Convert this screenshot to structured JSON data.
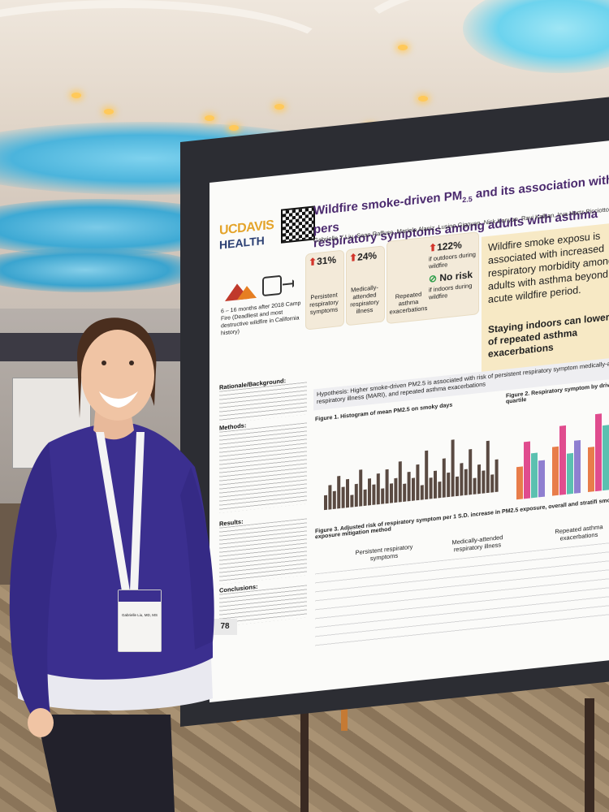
{
  "poster": {
    "title_line1": "Wildfire smoke-driven PM",
    "title_sub": "2.5",
    "title_line1b": " and its association with pers",
    "title_line2": "respiratory symptoms among adults with asthma",
    "authors": "Gabrielle Y Liu, Sean Raffuse, Mariela Alaniz, Lusine Gigoyan, Nick Kenyon, Ravi Kalhan, Irva Hertz-Picciotto",
    "logo_top": "UCDAVIS",
    "logo_bottom": "HEALTH",
    "stats": [
      {
        "value": "31%",
        "label": "Persistent respiratory symptoms"
      },
      {
        "value": "24%",
        "label": "Medically-attended respiratory illness"
      },
      {
        "value": "122%",
        "label": "Repeated asthma exacerbations",
        "note": "if outdoors during wildfire"
      },
      {
        "value": "No risk",
        "note": "if indoors during wildfire"
      }
    ],
    "timeline": "6 – 16 months after 2018 Camp Fire (Deadliest and most destructive wildfire in California history)",
    "callout_main": "Wildfire smoke exposu is associated with increased respiratory morbidity among adults with asthma beyond the acute wildfire period.",
    "callout_bold": "Staying indoors can lower risk of repeated asthma exacerbations",
    "rationale_title": "Rationale/Background:",
    "methods_title": "Methods:",
    "results_title": "Results:",
    "conclusions_title": "Conclusions:",
    "hypothesis": "Hypothesis: Higher smoke-driven PM2.5 is associated with risk of persistent respiratory symptom medically-attended respiratory illness (MARI), and repeated asthma exacerbations",
    "fig1_caption": "Figure 1. Histogram of mean PM2.5 on smoky days",
    "fig2_caption": "Figure 2. Respiratory symptom by driven PM2.5 quartile",
    "fig3_caption": "Figure 3. Adjusted risk of respiratory symptom per 1 S.D. increase in PM2.5 exposure, overall and stratifi smoke exposure mitigation method",
    "fig3_panels": [
      "Persistent respiratory symptoms",
      "Medically-attended respiratory illness",
      "Repeated asthma exacerbations"
    ],
    "board_number": "78"
  },
  "badge": {
    "name": "Gabrielle Liu, MD, MS"
  },
  "colors": {
    "poster_purple": "#4b2a6e",
    "ucdavis_gold": "#e4a42b",
    "callout_bg": "#f7e9c5",
    "shirt": "#3b2f8f"
  }
}
